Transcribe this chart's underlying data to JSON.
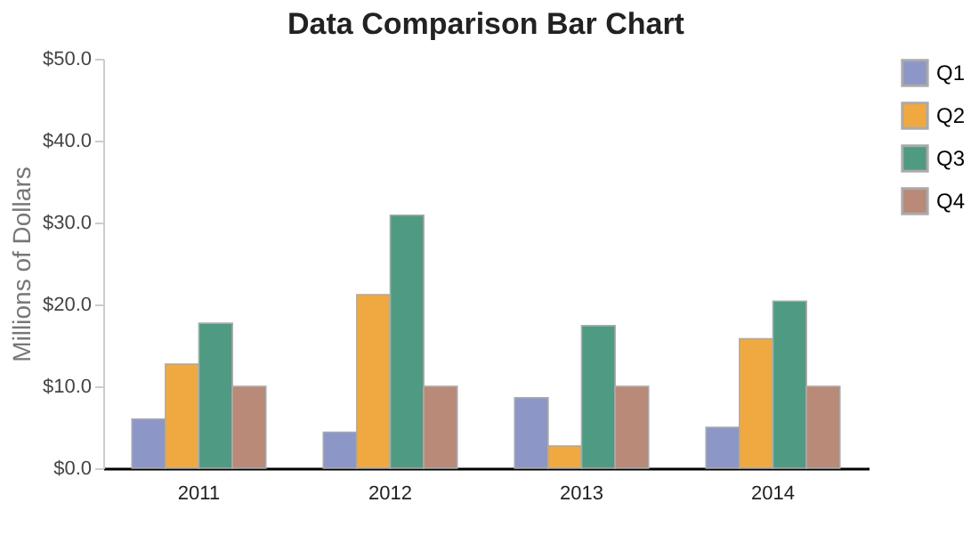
{
  "chart_data": {
    "type": "bar",
    "title": "Data Comparison Bar Chart",
    "ylabel": "Millions of Dollars",
    "categories": [
      "2011",
      "2012",
      "2013",
      "2014"
    ],
    "series": [
      {
        "name": "Q1",
        "color": "#8c97c8",
        "values": [
          6.0,
          4.4,
          8.6,
          5.0
        ]
      },
      {
        "name": "Q2",
        "color": "#f0a941",
        "values": [
          12.7,
          21.2,
          2.7,
          15.8
        ]
      },
      {
        "name": "Q3",
        "color": "#4f9a82",
        "values": [
          17.7,
          30.9,
          17.4,
          20.4
        ]
      },
      {
        "name": "Q4",
        "color": "#b98a78",
        "values": [
          10.0,
          10.0,
          10.0,
          10.0
        ]
      }
    ],
    "ylim": [
      0,
      50
    ],
    "yticks": [
      {
        "value": 0,
        "label": "$0.0"
      },
      {
        "value": 10,
        "label": "$10.0"
      },
      {
        "value": 20,
        "label": "$20.0"
      },
      {
        "value": 30,
        "label": "$30.0"
      },
      {
        "value": 40,
        "label": "$40.0"
      },
      {
        "value": 50,
        "label": "$50.0"
      }
    ],
    "grid": false,
    "legend": "right"
  }
}
